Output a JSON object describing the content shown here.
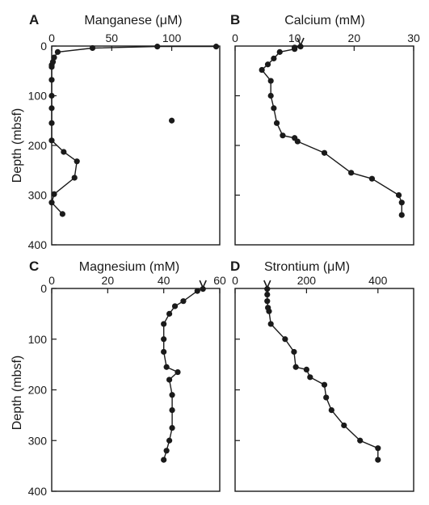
{
  "chart_data": [
    {
      "type": "line",
      "panel_letter": "A",
      "title": "Manganese (μM)",
      "xlabel": "Manganese (μM)",
      "ylabel": "Depth (mbsf)",
      "xlim": [
        0,
        140
      ],
      "ylim": [
        400,
        0
      ],
      "x_ticks": [
        "0",
        "50",
        "100"
      ],
      "x_tick_values": [
        0,
        50,
        100
      ],
      "y_ticks": [
        "0",
        "100",
        "200",
        "300",
        "400"
      ],
      "y_tick_values": [
        0,
        100,
        200,
        300,
        400
      ],
      "series": [
        {
          "x": [
            137,
            88,
            34,
            5,
            2,
            1,
            0,
            0,
            0,
            0,
            0,
            0,
            0,
            10,
            21,
            19,
            2,
            0,
            9
          ],
          "y": [
            1,
            1,
            4,
            12,
            23,
            32,
            38,
            42,
            68,
            100,
            125,
            155,
            190,
            213,
            232,
            265,
            298,
            315,
            338
          ]
        },
        {
          "x": [
            100
          ],
          "y": [
            150
          ],
          "points_only": true
        }
      ]
    },
    {
      "type": "line",
      "panel_letter": "B",
      "title": "Calcium (mM)",
      "xlabel": "Calcium (mM)",
      "ylabel": "",
      "xlim": [
        0,
        30
      ],
      "ylim": [
        400,
        0
      ],
      "x_ticks": [
        "0",
        "10",
        "20",
        "30"
      ],
      "x_tick_values": [
        0,
        10,
        20,
        30
      ],
      "y_ticks": [],
      "y_tick_values": [
        100,
        200,
        300
      ],
      "seawater_marker": {
        "x": 11
      },
      "series": [
        {
          "x": [
            11,
            10,
            10,
            7.5,
            6.5,
            5.5,
            4.5,
            6,
            6,
            6.5,
            7,
            8,
            10,
            10.5,
            15,
            19.5,
            23,
            27.5,
            28,
            28
          ],
          "y": [
            1,
            3,
            6,
            12,
            25,
            37,
            48,
            70,
            100,
            125,
            155,
            180,
            185,
            192,
            215,
            255,
            267,
            300,
            315,
            340
          ]
        }
      ]
    },
    {
      "type": "line",
      "panel_letter": "C",
      "title": "Magnesium (mM)",
      "xlabel": "Magnesium (mM)",
      "ylabel": "Depth (mbsf)",
      "xlim": [
        0,
        60
      ],
      "ylim": [
        400,
        0
      ],
      "x_ticks": [
        "0",
        "20",
        "40",
        "60"
      ],
      "x_tick_values": [
        0,
        20,
        40,
        60
      ],
      "y_ticks": [
        "0",
        "100",
        "200",
        "300",
        "400"
      ],
      "y_tick_values": [
        0,
        100,
        200,
        300,
        400
      ],
      "seawater_marker": {
        "x": 54
      },
      "series": [
        {
          "x": [
            54,
            52,
            47,
            44,
            42,
            40,
            40,
            40,
            41,
            45,
            42,
            43,
            43,
            43,
            42,
            41,
            40
          ],
          "y": [
            1,
            5,
            25,
            35,
            50,
            70,
            100,
            125,
            155,
            165,
            180,
            210,
            240,
            275,
            300,
            320,
            338
          ]
        }
      ]
    },
    {
      "type": "line",
      "panel_letter": "D",
      "title": "Strontium (μM)",
      "xlabel": "Strontium (μM)",
      "ylabel": "",
      "xlim": [
        0,
        500
      ],
      "ylim": [
        400,
        0
      ],
      "x_ticks": [
        "0",
        "200",
        "400"
      ],
      "x_tick_values": [
        0,
        200,
        400
      ],
      "y_ticks": [],
      "y_tick_values": [
        100,
        200,
        300
      ],
      "seawater_marker": {
        "x": 90
      },
      "series": [
        {
          "x": [
            90,
            90,
            90,
            92,
            95,
            100,
            140,
            165,
            170,
            200,
            210,
            250,
            255,
            270,
            305,
            350,
            400,
            400
          ],
          "y": [
            1,
            12,
            25,
            38,
            45,
            70,
            100,
            125,
            155,
            160,
            175,
            190,
            215,
            240,
            270,
            300,
            315,
            338
          ]
        }
      ]
    }
  ]
}
